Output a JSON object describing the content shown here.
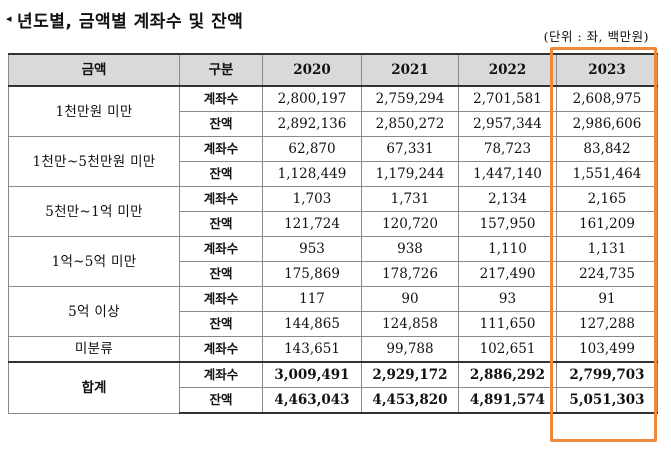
{
  "title": {
    "marker": "◂",
    "text": "년도별, 금액별 계좌수 및 잔액"
  },
  "unit_note": "(단위 : 좌, 백만원)",
  "header": {
    "amount": "금액",
    "category": "구분",
    "years": [
      "2020",
      "2021",
      "2022",
      "2023"
    ]
  },
  "groups": [
    {
      "label": "1천만원 미만",
      "rows": [
        {
          "type": "계좌수",
          "values": [
            "2,800,197",
            "2,759,294",
            "2,701,581",
            "2,608,975"
          ]
        },
        {
          "type": "잔액",
          "values": [
            "2,892,136",
            "2,850,272",
            "2,957,344",
            "2,986,606"
          ]
        }
      ]
    },
    {
      "label": "1천만~5천만원 미만",
      "rows": [
        {
          "type": "계좌수",
          "values": [
            "62,870",
            "67,331",
            "78,723",
            "83,842"
          ]
        },
        {
          "type": "잔액",
          "values": [
            "1,128,449",
            "1,179,244",
            "1,447,140",
            "1,551,464"
          ]
        }
      ]
    },
    {
      "label": "5천만~1억 미만",
      "rows": [
        {
          "type": "계좌수",
          "values": [
            "1,703",
            "1,731",
            "2,134",
            "2,165"
          ]
        },
        {
          "type": "잔액",
          "values": [
            "121,724",
            "120,720",
            "157,950",
            "161,209"
          ]
        }
      ]
    },
    {
      "label": "1억~5억 미만",
      "rows": [
        {
          "type": "계좌수",
          "values": [
            "953",
            "938",
            "1,110",
            "1,131"
          ]
        },
        {
          "type": "잔액",
          "values": [
            "175,869",
            "178,726",
            "217,490",
            "224,735"
          ]
        }
      ]
    },
    {
      "label": "5억 이상",
      "rows": [
        {
          "type": "계좌수",
          "values": [
            "117",
            "90",
            "93",
            "91"
          ]
        },
        {
          "type": "잔액",
          "values": [
            "144,865",
            "124,858",
            "111,650",
            "127,288"
          ]
        }
      ]
    },
    {
      "label": "미분류",
      "rows": [
        {
          "type": "계좌수",
          "values": [
            "143,651",
            "99,788",
            "102,651",
            "103,499"
          ]
        }
      ]
    },
    {
      "label": "합계",
      "rows": [
        {
          "type": "계좌수",
          "values": [
            "3,009,491",
            "2,929,172",
            "2,886,292",
            "2,799,703"
          ]
        },
        {
          "type": "잔액",
          "values": [
            "4,463,043",
            "4,453,820",
            "4,891,574",
            "5,051,303"
          ]
        }
      ]
    }
  ],
  "colors": {
    "header_bg": "#d9d9d9",
    "highlight_border": "#f0883a"
  }
}
